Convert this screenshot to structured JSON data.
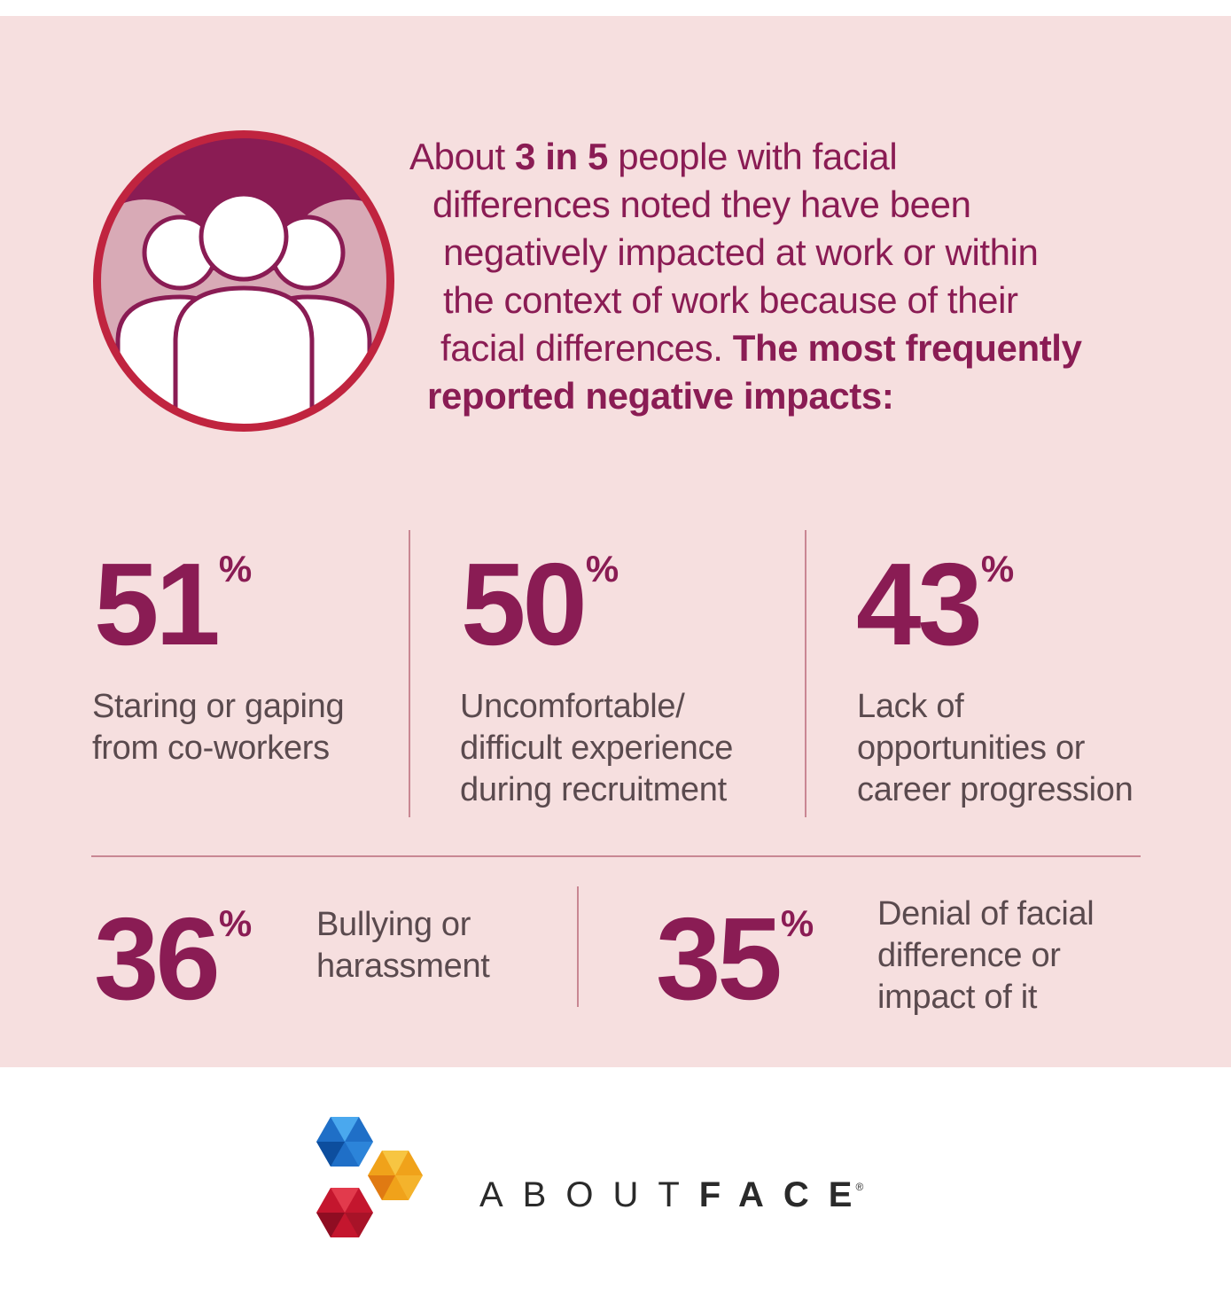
{
  "intro": {
    "line1_a": "About ",
    "line1_b": "3 in 5",
    "line1_c": " people with facial",
    "line2": "differences noted they have been",
    "line3": "negatively impacted at work or within",
    "line4": "the context of work because of their",
    "line5_a": "facial differences. ",
    "line5_b": "The most frequently",
    "line6": "reported negative impacts:"
  },
  "stats": [
    {
      "value": "51",
      "unit": "%",
      "label": [
        "Staring or gaping",
        "from co-workers"
      ]
    },
    {
      "value": "50",
      "unit": "%",
      "label": [
        "Uncomfortable/",
        "difficult experience",
        "during recruitment"
      ]
    },
    {
      "value": "43",
      "unit": "%",
      "label": [
        "Lack of",
        "opportunities or",
        "career progression"
      ]
    },
    {
      "value": "36",
      "unit": "%",
      "label": [
        "Bullying or",
        "harassment"
      ]
    },
    {
      "value": "35",
      "unit": "%",
      "label": [
        "Denial of facial",
        "difference or",
        "impact of it"
      ]
    }
  ],
  "brand": {
    "part1": "ABOUT",
    "part2": "FACE",
    "reg": "®"
  },
  "icons": {
    "people": "people-group-icon",
    "logo": "aboutface-logo-icon"
  },
  "colors": {
    "accent": "#8a1c54",
    "panel": "#f6dfdf",
    "text": "#5a4a4e",
    "ring": "#c0243f"
  }
}
